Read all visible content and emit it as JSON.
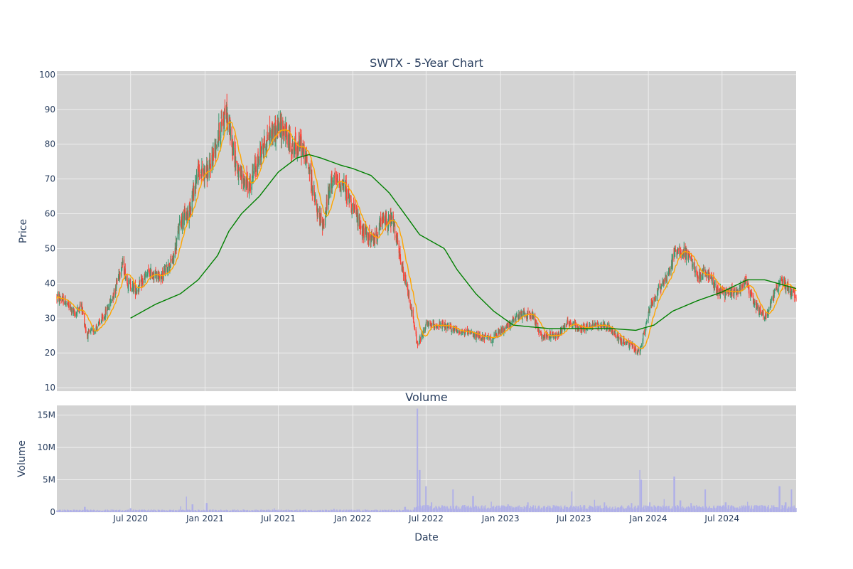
{
  "chart_data": {
    "type": "candlestick",
    "title": "SWTX - 5-Year Chart",
    "volume_title": "Volume",
    "xlabel": "Date",
    "ylabel_price": "Price",
    "ylabel_volume": "Volume",
    "x_range": [
      "2020-01-01",
      "2024-12-31"
    ],
    "x_ticks": [
      {
        "date": "2020-07-01",
        "label": "Jul 2020"
      },
      {
        "date": "2021-01-01",
        "label": "Jan 2021"
      },
      {
        "date": "2021-07-01",
        "label": "Jul 2021"
      },
      {
        "date": "2022-01-01",
        "label": "Jan 2022"
      },
      {
        "date": "2022-07-01",
        "label": "Jul 2022"
      },
      {
        "date": "2023-01-01",
        "label": "Jan 2023"
      },
      {
        "date": "2023-07-01",
        "label": "Jul 2023"
      },
      {
        "date": "2024-01-01",
        "label": "Jan 2024"
      },
      {
        "date": "2024-07-01",
        "label": "Jul 2024"
      }
    ],
    "price_ylim": [
      9,
      101
    ],
    "price_ticks": [
      10,
      20,
      30,
      40,
      50,
      60,
      70,
      80,
      90,
      100
    ],
    "volume_ylim": [
      0,
      16500000
    ],
    "volume_ticks": [
      {
        "value": 0,
        "label": "0"
      },
      {
        "value": 5000000,
        "label": "5M"
      },
      {
        "value": 10000000,
        "label": "10M"
      },
      {
        "value": 15000000,
        "label": "15M"
      }
    ],
    "price_keypoints": [
      [
        "2020-01-01",
        36
      ],
      [
        "2020-01-20",
        35
      ],
      [
        "2020-02-15",
        31
      ],
      [
        "2020-03-01",
        34
      ],
      [
        "2020-03-15",
        25
      ],
      [
        "2020-04-05",
        27
      ],
      [
        "2020-04-25",
        30
      ],
      [
        "2020-05-20",
        37
      ],
      [
        "2020-06-10",
        46
      ],
      [
        "2020-06-25",
        40
      ],
      [
        "2020-07-15",
        38
      ],
      [
        "2020-08-15",
        43
      ],
      [
        "2020-09-15",
        42
      ],
      [
        "2020-10-15",
        47
      ],
      [
        "2020-11-01",
        58
      ],
      [
        "2020-11-20",
        60
      ],
      [
        "2020-12-15",
        72
      ],
      [
        "2021-01-10",
        72
      ],
      [
        "2021-02-01",
        82
      ],
      [
        "2021-02-20",
        90
      ],
      [
        "2021-03-10",
        80
      ],
      [
        "2021-03-25",
        71
      ],
      [
        "2021-04-20",
        68
      ],
      [
        "2021-05-20",
        78
      ],
      [
        "2021-06-10",
        83
      ],
      [
        "2021-07-10",
        85
      ],
      [
        "2021-08-05",
        79
      ],
      [
        "2021-08-25",
        80
      ],
      [
        "2021-09-15",
        73
      ],
      [
        "2021-10-05",
        60
      ],
      [
        "2021-10-20",
        57
      ],
      [
        "2021-11-10",
        70
      ],
      [
        "2021-12-10",
        68
      ],
      [
        "2022-01-01",
        62
      ],
      [
        "2022-01-25",
        55
      ],
      [
        "2022-02-20",
        52
      ],
      [
        "2022-03-15",
        58
      ],
      [
        "2022-04-10",
        58
      ],
      [
        "2022-05-01",
        45
      ],
      [
        "2022-05-20",
        36
      ],
      [
        "2022-06-10",
        22
      ],
      [
        "2022-07-01",
        28
      ],
      [
        "2022-08-01",
        28
      ],
      [
        "2022-09-01",
        27
      ],
      [
        "2022-10-01",
        26
      ],
      [
        "2022-11-01",
        25
      ],
      [
        "2022-12-10",
        24
      ],
      [
        "2023-01-20",
        28
      ],
      [
        "2023-02-20",
        31
      ],
      [
        "2023-03-20",
        31
      ],
      [
        "2023-04-10",
        25
      ],
      [
        "2023-05-20",
        25
      ],
      [
        "2023-06-15",
        29
      ],
      [
        "2023-07-15",
        27
      ],
      [
        "2023-08-20",
        28
      ],
      [
        "2023-09-20",
        28
      ],
      [
        "2023-10-20",
        24
      ],
      [
        "2023-11-20",
        22
      ],
      [
        "2023-12-10",
        20
      ],
      [
        "2024-01-05",
        33
      ],
      [
        "2024-01-25",
        38
      ],
      [
        "2024-02-20",
        43
      ],
      [
        "2024-03-10",
        50
      ],
      [
        "2024-03-25",
        49
      ],
      [
        "2024-04-10",
        48
      ],
      [
        "2024-05-01",
        42
      ],
      [
        "2024-05-25",
        43
      ],
      [
        "2024-06-20",
        38
      ],
      [
        "2024-07-10",
        37
      ],
      [
        "2024-08-10",
        38
      ],
      [
        "2024-08-25",
        41
      ],
      [
        "2024-09-20",
        34
      ],
      [
        "2024-10-15",
        30
      ],
      [
        "2024-11-10",
        38
      ],
      [
        "2024-11-25",
        41
      ],
      [
        "2024-12-31",
        36
      ]
    ],
    "ma_long_keypoints": [
      [
        "2020-07-01",
        30
      ],
      [
        "2020-09-01",
        34
      ],
      [
        "2020-11-01",
        37
      ],
      [
        "2020-12-15",
        41
      ],
      [
        "2021-02-01",
        48
      ],
      [
        "2021-03-01",
        55
      ],
      [
        "2021-04-01",
        60
      ],
      [
        "2021-05-15",
        65
      ],
      [
        "2021-07-01",
        72
      ],
      [
        "2021-08-15",
        76
      ],
      [
        "2021-09-15",
        77
      ],
      [
        "2021-10-15",
        76
      ],
      [
        "2021-12-01",
        74
      ],
      [
        "2022-01-01",
        73
      ],
      [
        "2022-02-15",
        71
      ],
      [
        "2022-04-01",
        66
      ],
      [
        "2022-05-15",
        59
      ],
      [
        "2022-06-15",
        54
      ],
      [
        "2022-08-15",
        50
      ],
      [
        "2022-09-15",
        44
      ],
      [
        "2022-11-01",
        37
      ],
      [
        "2022-12-15",
        32
      ],
      [
        "2023-02-01",
        28
      ],
      [
        "2023-03-15",
        27.5
      ],
      [
        "2023-05-01",
        27
      ],
      [
        "2023-07-01",
        27
      ],
      [
        "2023-10-01",
        27
      ],
      [
        "2023-12-01",
        26.5
      ],
      [
        "2024-01-15",
        28
      ],
      [
        "2024-03-01",
        32
      ],
      [
        "2024-05-01",
        35
      ],
      [
        "2024-07-01",
        37.5
      ],
      [
        "2024-09-01",
        41
      ],
      [
        "2024-10-15",
        41
      ],
      [
        "2024-12-31",
        38.5
      ]
    ],
    "volume_spikes": [
      [
        "2020-03-10",
        0.8
      ],
      [
        "2020-07-01",
        0.6
      ],
      [
        "2020-11-01",
        0.9
      ],
      [
        "2020-11-15",
        2.4
      ],
      [
        "2020-12-01",
        1.2
      ],
      [
        "2021-01-05",
        1.4
      ],
      [
        "2021-06-20",
        0.6
      ],
      [
        "2021-11-15",
        0.5
      ],
      [
        "2022-05-10",
        0.8
      ],
      [
        "2022-06-10",
        16.0
      ],
      [
        "2022-06-15",
        6.5
      ],
      [
        "2022-07-01",
        4.0
      ],
      [
        "2022-07-15",
        1.5
      ],
      [
        "2022-09-05",
        3.5
      ],
      [
        "2022-10-25",
        2.5
      ],
      [
        "2022-12-10",
        1.6
      ],
      [
        "2023-01-20",
        1.2
      ],
      [
        "2023-03-10",
        1.5
      ],
      [
        "2023-06-25",
        3.2
      ],
      [
        "2023-08-20",
        1.9
      ],
      [
        "2023-09-15",
        1.5
      ],
      [
        "2023-11-20",
        1.4
      ],
      [
        "2023-12-10",
        6.5
      ],
      [
        "2023-12-15",
        5.0
      ],
      [
        "2024-01-05",
        1.5
      ],
      [
        "2024-02-10",
        2.0
      ],
      [
        "2024-03-05",
        5.5
      ],
      [
        "2024-03-20",
        1.8
      ],
      [
        "2024-04-15",
        1.4
      ],
      [
        "2024-05-20",
        3.5
      ],
      [
        "2024-07-10",
        1.5
      ],
      [
        "2024-09-01",
        1.6
      ],
      [
        "2024-11-20",
        4.0
      ],
      [
        "2024-12-05",
        1.5
      ],
      [
        "2024-12-20",
        3.5
      ]
    ],
    "colors": {
      "increasing": "#3d9970",
      "decreasing": "#ff4136",
      "ma_short": "#ffa500",
      "ma_long": "#008000",
      "volume": "#b0b0e8",
      "plot_bg": "#d3d3d3",
      "grid": "#eeeeee"
    },
    "legend": "none",
    "grid": true
  }
}
